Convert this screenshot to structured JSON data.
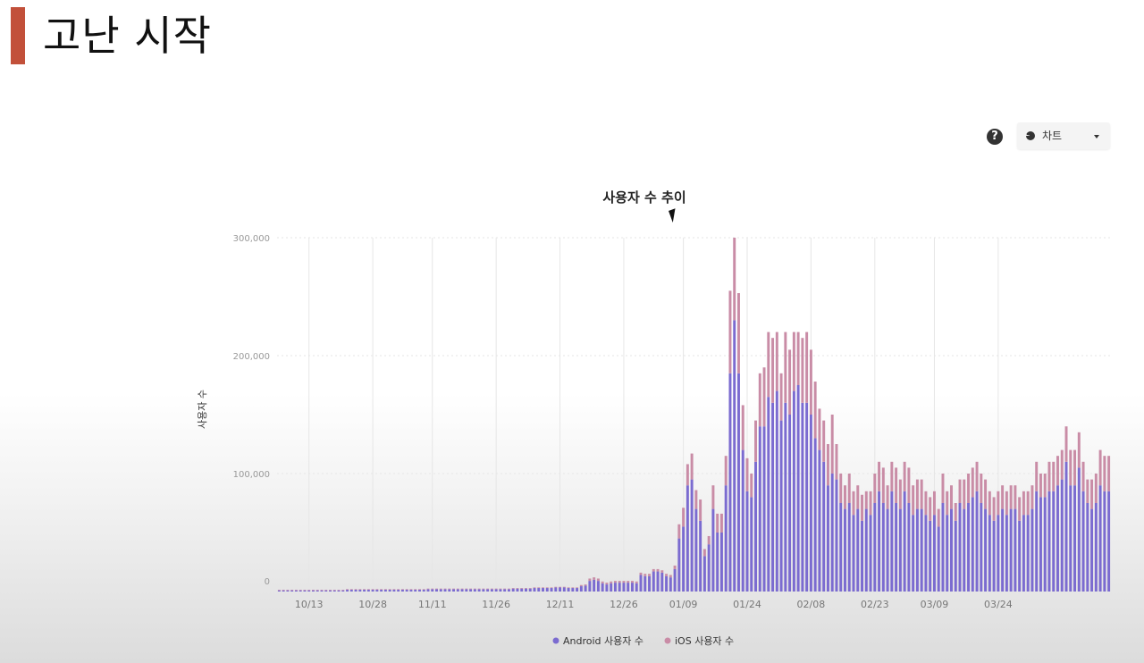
{
  "slide": {
    "title": "고난 시작"
  },
  "controls": {
    "help_icon": "question-circle-icon",
    "view_select": {
      "selected": "차트",
      "icon": "pie-chart-icon"
    }
  },
  "colors": {
    "accent_bar": "#c2503a",
    "android": "#7b6bd0",
    "ios": "#c98ca6",
    "grid": "#e6e6e6"
  },
  "chart_data": {
    "type": "bar",
    "stacked": true,
    "title": "사용자 수 추이",
    "xlabel": "",
    "ylabel": "사용자 수",
    "ylim": [
      0,
      300000
    ],
    "y_ticks": [
      "0",
      "100,000",
      "200,000",
      "300,000"
    ],
    "grid": true,
    "legend_position": "bottom",
    "start_date": "2018-10-06",
    "x_ticks": [
      "10/13",
      "10/28",
      "11/11",
      "11/26",
      "12/11",
      "12/26",
      "01/09",
      "01/24",
      "02/08",
      "02/23",
      "03/09",
      "03/24"
    ],
    "series": [
      {
        "name": "Android 사용자 수",
        "values": [
          1000,
          1000,
          1000,
          1000,
          1000,
          1000,
          1000,
          1000,
          1000,
          1000,
          1000,
          1000,
          1000,
          1000,
          1000,
          1000,
          1500,
          1500,
          1500,
          1500,
          1500,
          1500,
          1500,
          1500,
          1500,
          1500,
          1500,
          1500,
          1500,
          1500,
          1500,
          1500,
          1500,
          1500,
          1500,
          2000,
          2000,
          2000,
          2000,
          2000,
          2000,
          2000,
          2000,
          2000,
          2000,
          2000,
          2000,
          2000,
          2000,
          2000,
          2000,
          2000,
          2000,
          2000,
          2000,
          2500,
          2500,
          2500,
          2500,
          2500,
          3000,
          3000,
          3000,
          3000,
          3000,
          3500,
          3500,
          3500,
          3000,
          3000,
          3000,
          4500,
          5000,
          9000,
          10000,
          9000,
          7000,
          6000,
          7000,
          7500,
          7500,
          7500,
          7500,
          7500,
          7000,
          14000,
          13000,
          13000,
          17000,
          17000,
          16000,
          13000,
          12000,
          19000,
          45000,
          55000,
          90000,
          95000,
          70000,
          60000,
          30000,
          40000,
          70000,
          50000,
          50000,
          90000,
          185000,
          230000,
          185000,
          120000,
          85000,
          80000,
          110000,
          140000,
          140000,
          165000,
          160000,
          170000,
          145000,
          160000,
          150000,
          170000,
          175000,
          160000,
          160000,
          150000,
          130000,
          120000,
          110000,
          90000,
          100000,
          95000,
          75000,
          70000,
          75000,
          65000,
          70000,
          60000,
          70000,
          65000,
          75000,
          85000,
          75000,
          70000,
          85000,
          75000,
          70000,
          85000,
          75000,
          65000,
          70000,
          70000,
          65000,
          60000,
          65000,
          55000,
          75000,
          65000,
          70000,
          60000,
          75000,
          70000,
          75000,
          80000,
          85000,
          75000,
          70000,
          65000,
          60000,
          65000,
          70000,
          65000,
          70000,
          70000,
          60000,
          65000,
          65000,
          70000,
          85000,
          80000,
          80000,
          85000,
          85000,
          90000,
          95000,
          110000,
          90000,
          90000,
          105000,
          85000,
          75000,
          70000,
          75000,
          90000,
          85000,
          85000
        ]
      },
      {
        "name": "iOS 사용자 수",
        "values": [
          500,
          500,
          500,
          500,
          500,
          500,
          500,
          500,
          500,
          500,
          500,
          500,
          500,
          500,
          500,
          500,
          500,
          500,
          500,
          500,
          500,
          500,
          500,
          500,
          500,
          500,
          500,
          500,
          500,
          500,
          500,
          500,
          500,
          500,
          500,
          500,
          500,
          500,
          500,
          500,
          500,
          500,
          500,
          500,
          500,
          500,
          500,
          500,
          500,
          500,
          500,
          500,
          500,
          500,
          500,
          500,
          500,
          500,
          500,
          500,
          500,
          500,
          500,
          500,
          500,
          500,
          500,
          500,
          500,
          500,
          500,
          1000,
          1000,
          2000,
          2000,
          2000,
          1500,
          1500,
          1500,
          1500,
          1500,
          1500,
          1500,
          1500,
          1500,
          2000,
          2000,
          2000,
          2000,
          2000,
          2000,
          2000,
          2000,
          3000,
          12000,
          16000,
          18000,
          22000,
          16000,
          18000,
          6000,
          7000,
          20000,
          16000,
          16000,
          25000,
          70000,
          70000,
          68000,
          38000,
          28000,
          20000,
          35000,
          45000,
          50000,
          55000,
          55000,
          50000,
          40000,
          60000,
          55000,
          50000,
          45000,
          55000,
          60000,
          55000,
          48000,
          35000,
          35000,
          35000,
          50000,
          30000,
          25000,
          20000,
          25000,
          20000,
          20000,
          22000,
          15000,
          20000,
          25000,
          25000,
          30000,
          20000,
          25000,
          30000,
          25000,
          25000,
          30000,
          25000,
          25000,
          25000,
          20000,
          20000,
          20000,
          15000,
          25000,
          20000,
          20000,
          15000,
          20000,
          25000,
          25000,
          25000,
          25000,
          25000,
          25000,
          20000,
          20000,
          20000,
          20000,
          20000,
          20000,
          20000,
          20000,
          20000,
          20000,
          20000,
          25000,
          20000,
          20000,
          25000,
          25000,
          25000,
          25000,
          30000,
          30000,
          30000,
          30000,
          25000,
          20000,
          25000,
          25000,
          30000,
          30000,
          30000
        ]
      }
    ]
  }
}
